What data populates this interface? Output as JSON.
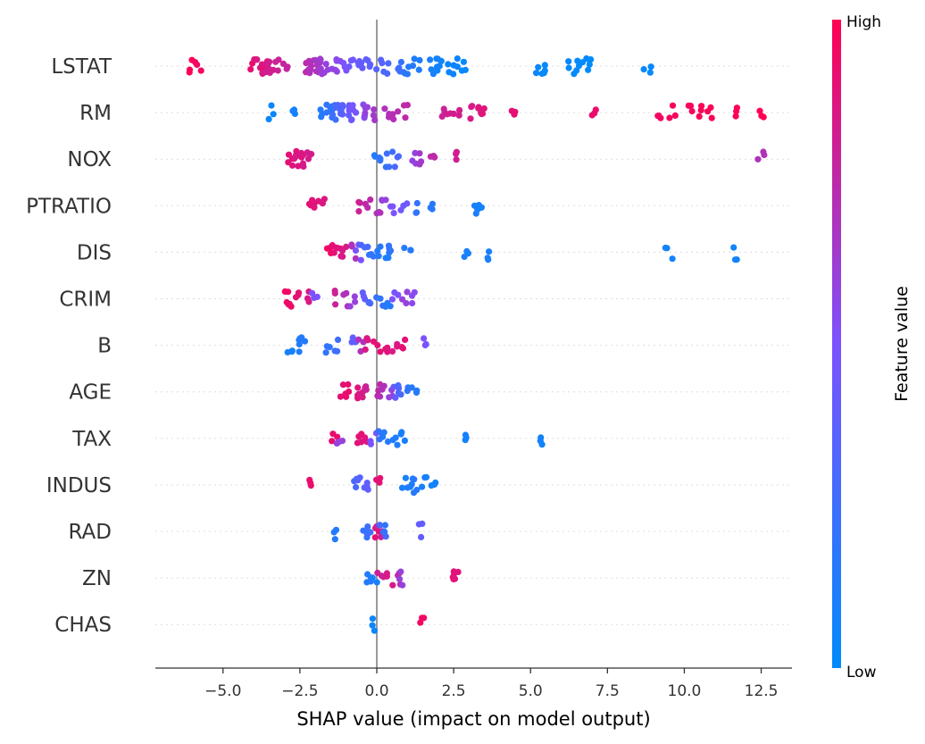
{
  "chart_data": {
    "type": "scatter",
    "title": "",
    "xlabel": "SHAP value (impact on model output)",
    "ylabel": "",
    "xlim": [
      -7.2,
      13.5
    ],
    "xticks": [
      -5.0,
      -2.5,
      0.0,
      2.5,
      5.0,
      7.5,
      10.0,
      12.5
    ],
    "xtick_labels": [
      "−5.0",
      "−2.5",
      "0.0",
      "2.5",
      "5.0",
      "7.5",
      "10.0",
      "12.5"
    ],
    "grid": false,
    "legend": "colorbar-right",
    "colorbar": {
      "title": "Feature value",
      "high_label": "High",
      "low_label": "Low",
      "high_color": "#ff0052",
      "low_color": "#008bfb"
    },
    "features": [
      {
        "name": "LSTAT",
        "points": [
          [
            -6.1,
            0.98
          ],
          [
            -5.8,
            0.95
          ],
          [
            -4.0,
            0.92
          ],
          [
            -3.9,
            0.88
          ],
          [
            -3.8,
            0.85
          ],
          [
            -3.7,
            0.9
          ],
          [
            -3.6,
            0.86
          ],
          [
            -3.5,
            0.82
          ],
          [
            -3.4,
            0.83
          ],
          [
            -3.2,
            0.8
          ],
          [
            -3.0,
            0.78
          ],
          [
            -2.3,
            0.75
          ],
          [
            -2.2,
            0.72
          ],
          [
            -2.1,
            0.7
          ],
          [
            -2.0,
            0.68
          ],
          [
            -1.9,
            0.66
          ],
          [
            -1.8,
            0.63
          ],
          [
            -1.6,
            0.6
          ],
          [
            -1.4,
            0.58
          ],
          [
            -1.2,
            0.55
          ],
          [
            -1.0,
            0.5
          ],
          [
            -0.8,
            0.45
          ],
          [
            -0.6,
            0.42
          ],
          [
            -0.4,
            0.4
          ],
          [
            -0.2,
            0.38
          ],
          [
            0.1,
            0.35
          ],
          [
            0.3,
            0.3
          ],
          [
            0.8,
            0.25
          ],
          [
            0.9,
            0.2
          ],
          [
            1.1,
            0.15
          ],
          [
            1.3,
            0.12
          ],
          [
            1.8,
            0.1
          ],
          [
            1.9,
            0.08
          ],
          [
            2.0,
            0.06
          ],
          [
            2.4,
            0.05
          ],
          [
            2.6,
            0.04
          ],
          [
            2.8,
            0.03
          ],
          [
            5.3,
            0.03
          ],
          [
            5.5,
            0.02
          ],
          [
            6.3,
            0.02
          ],
          [
            6.6,
            0.01
          ],
          [
            6.8,
            0.01
          ],
          [
            6.9,
            0.0
          ],
          [
            8.8,
            0.02
          ]
        ]
      },
      {
        "name": "RM",
        "points": [
          [
            -3.4,
            0.05
          ],
          [
            -2.7,
            0.08
          ],
          [
            -1.8,
            0.15
          ],
          [
            -1.6,
            0.2
          ],
          [
            -1.5,
            0.18
          ],
          [
            -1.4,
            0.25
          ],
          [
            -1.3,
            0.3
          ],
          [
            -1.2,
            0.33
          ],
          [
            -1.0,
            0.38
          ],
          [
            -0.9,
            0.42
          ],
          [
            -0.8,
            0.45
          ],
          [
            -0.7,
            0.48
          ],
          [
            -0.5,
            0.55
          ],
          [
            -0.3,
            0.6
          ],
          [
            0.0,
            0.65
          ],
          [
            0.3,
            0.7
          ],
          [
            0.6,
            0.72
          ],
          [
            1.0,
            0.75
          ],
          [
            2.1,
            0.8
          ],
          [
            2.4,
            0.82
          ],
          [
            2.6,
            0.83
          ],
          [
            3.0,
            0.85
          ],
          [
            3.3,
            0.86
          ],
          [
            3.4,
            0.88
          ],
          [
            4.4,
            0.9
          ],
          [
            7.1,
            0.92
          ],
          [
            9.2,
            0.95
          ],
          [
            9.6,
            0.96
          ],
          [
            10.2,
            0.97
          ],
          [
            10.6,
            0.98
          ],
          [
            10.8,
            0.98
          ],
          [
            11.6,
            0.99
          ],
          [
            12.5,
            1.0
          ]
        ]
      },
      {
        "name": "NOX",
        "points": [
          [
            -2.8,
            0.9
          ],
          [
            -2.7,
            0.88
          ],
          [
            -2.6,
            0.85
          ],
          [
            -2.5,
            0.87
          ],
          [
            -2.4,
            0.86
          ],
          [
            -2.3,
            0.84
          ],
          [
            -2.2,
            0.83
          ],
          [
            0.0,
            0.15
          ],
          [
            0.2,
            0.2
          ],
          [
            0.4,
            0.25
          ],
          [
            0.6,
            0.3
          ],
          [
            1.2,
            0.6
          ],
          [
            1.5,
            0.65
          ],
          [
            1.8,
            0.75
          ],
          [
            2.6,
            0.82
          ],
          [
            12.5,
            0.7
          ]
        ]
      },
      {
        "name": "PTRATIO",
        "points": [
          [
            -2.1,
            0.9
          ],
          [
            -2.0,
            0.88
          ],
          [
            -1.8,
            0.86
          ],
          [
            -0.5,
            0.8
          ],
          [
            -0.3,
            0.75
          ],
          [
            0.0,
            0.7
          ],
          [
            0.2,
            0.6
          ],
          [
            0.5,
            0.5
          ],
          [
            0.9,
            0.45
          ],
          [
            1.3,
            0.2
          ],
          [
            1.8,
            0.15
          ],
          [
            3.2,
            0.1
          ],
          [
            3.4,
            0.08
          ]
        ]
      },
      {
        "name": "DIS",
        "points": [
          [
            -1.6,
            0.95
          ],
          [
            -1.4,
            0.9
          ],
          [
            -1.2,
            0.88
          ],
          [
            -1.0,
            0.85
          ],
          [
            -0.8,
            0.7
          ],
          [
            -0.6,
            0.5
          ],
          [
            -0.4,
            0.3
          ],
          [
            -0.2,
            0.2
          ],
          [
            0.0,
            0.15
          ],
          [
            0.3,
            0.12
          ],
          [
            0.5,
            0.2
          ],
          [
            1.0,
            0.15
          ],
          [
            2.9,
            0.1
          ],
          [
            3.6,
            0.1
          ],
          [
            9.5,
            0.08
          ],
          [
            11.7,
            0.07
          ]
        ]
      },
      {
        "name": "CRIM",
        "points": [
          [
            -3.0,
            0.95
          ],
          [
            -2.8,
            0.93
          ],
          [
            -2.6,
            0.9
          ],
          [
            -2.3,
            0.85
          ],
          [
            -2.0,
            0.5
          ],
          [
            -1.3,
            0.8
          ],
          [
            -1.0,
            0.7
          ],
          [
            -0.8,
            0.6
          ],
          [
            -0.5,
            0.4
          ],
          [
            -0.2,
            0.3
          ],
          [
            0.1,
            0.2
          ],
          [
            0.4,
            0.15
          ],
          [
            0.6,
            0.5
          ],
          [
            0.9,
            0.6
          ],
          [
            1.2,
            0.55
          ]
        ]
      },
      {
        "name": "B",
        "points": [
          [
            -2.8,
            0.1
          ],
          [
            -2.6,
            0.12
          ],
          [
            -2.4,
            0.15
          ],
          [
            -1.6,
            0.2
          ],
          [
            -1.3,
            0.25
          ],
          [
            -0.8,
            0.4
          ],
          [
            -0.5,
            0.7
          ],
          [
            -0.3,
            0.85
          ],
          [
            0.0,
            0.9
          ],
          [
            0.3,
            0.88
          ],
          [
            0.6,
            0.85
          ],
          [
            0.9,
            0.9
          ],
          [
            1.6,
            0.5
          ]
        ]
      },
      {
        "name": "AGE",
        "points": [
          [
            -1.1,
            0.9
          ],
          [
            -0.9,
            0.92
          ],
          [
            -0.7,
            0.88
          ],
          [
            -0.5,
            0.85
          ],
          [
            -0.3,
            0.8
          ],
          [
            0.0,
            0.75
          ],
          [
            0.2,
            0.7
          ],
          [
            0.4,
            0.6
          ],
          [
            0.6,
            0.4
          ],
          [
            0.8,
            0.3
          ],
          [
            1.0,
            0.2
          ],
          [
            1.2,
            0.15
          ]
        ]
      },
      {
        "name": "TAX",
        "points": [
          [
            -1.4,
            0.92
          ],
          [
            -1.2,
            0.6
          ],
          [
            -0.6,
            0.9
          ],
          [
            -0.4,
            0.88
          ],
          [
            -0.1,
            0.5
          ],
          [
            0.1,
            0.2
          ],
          [
            0.3,
            0.15
          ],
          [
            0.6,
            0.12
          ],
          [
            0.8,
            0.1
          ],
          [
            2.9,
            0.08
          ],
          [
            5.4,
            0.07
          ]
        ]
      },
      {
        "name": "INDUS",
        "points": [
          [
            -2.1,
            0.92
          ],
          [
            -0.7,
            0.3
          ],
          [
            -0.5,
            0.35
          ],
          [
            -0.3,
            0.4
          ],
          [
            0.0,
            0.9
          ],
          [
            0.9,
            0.1
          ],
          [
            1.1,
            0.12
          ],
          [
            1.3,
            0.15
          ],
          [
            1.5,
            0.1
          ],
          [
            1.8,
            0.08
          ]
        ]
      },
      {
        "name": "RAD",
        "points": [
          [
            -1.3,
            0.15
          ],
          [
            -0.4,
            0.2
          ],
          [
            -0.2,
            0.25
          ],
          [
            0.0,
            0.9
          ],
          [
            0.1,
            0.8
          ],
          [
            0.2,
            0.3
          ],
          [
            0.3,
            0.2
          ],
          [
            1.4,
            0.4
          ]
        ]
      },
      {
        "name": "ZN",
        "points": [
          [
            -0.3,
            0.15
          ],
          [
            -0.1,
            0.1
          ],
          [
            0.1,
            0.8
          ],
          [
            0.4,
            0.85
          ],
          [
            0.7,
            0.75
          ],
          [
            0.8,
            0.6
          ],
          [
            2.4,
            0.9
          ],
          [
            2.6,
            0.88
          ]
        ]
      },
      {
        "name": "CHAS",
        "points": [
          [
            -0.15,
            0.05
          ],
          [
            1.45,
            0.95
          ]
        ]
      }
    ]
  }
}
